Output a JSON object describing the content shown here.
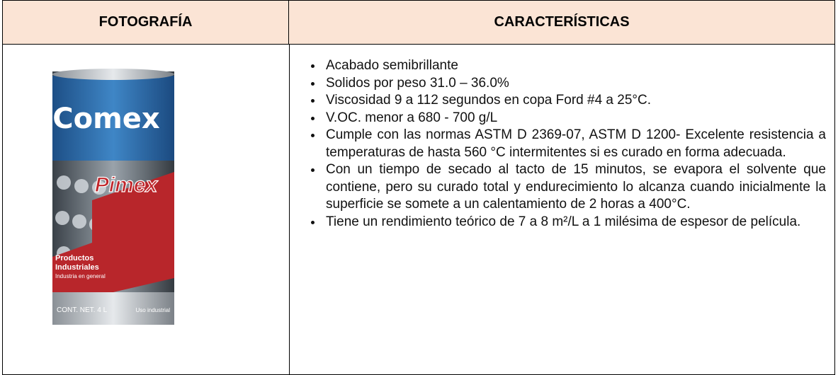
{
  "table": {
    "headers": [
      "FOTOGRAFÍA",
      "CARACTERÍSTICAS"
    ],
    "photo": {
      "brand": "Comex",
      "product": "Pimex",
      "line1": "Productos",
      "line2": "Industriales",
      "line3": "Industria en general",
      "net": "CONT. NET. 4 L",
      "use": "Uso industrial"
    },
    "items": [
      "Acabado semibrillante",
      "Solidos por peso 31.0 – 36.0%",
      "Viscosidad 9 a 112 segundos en copa Ford #4 a 25°C.",
      "V.OC. menor a 680 - 700 g/L",
      "Cumple con las normas ASTM D 2369-07, ASTM D 1200- Excelente resistencia a temperaturas de hasta 560 °C intermitentes si es curado en forma adecuada.",
      "Con un tiempo de secado al tacto de 15 minutos, se evapora el solvente que contiene, pero su curado total y endurecimiento lo alcanza cuando inicialmente la superficie se somete a un calentamiento de 2 horas a 400°C.",
      "Tiene un rendimiento teórico de 7 a 8 m²/L a 1 milésima de espesor de película."
    ]
  }
}
